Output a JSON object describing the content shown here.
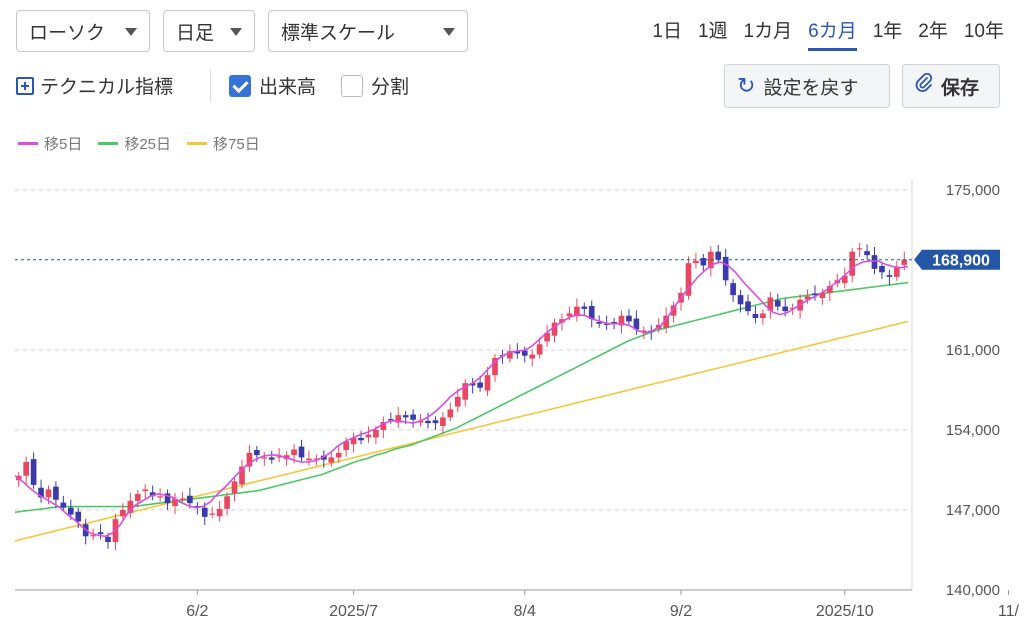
{
  "controls": {
    "chart_type": "ローソク",
    "interval": "日足",
    "scale": "標準スケール",
    "periods": [
      "1日",
      "1週",
      "1カ月",
      "6カ月",
      "1年",
      "2年",
      "10年"
    ],
    "active_period": "6カ月",
    "technical_label": "テクニカル指標",
    "volume_label": "出来高",
    "volume_checked": true,
    "split_label": "分割",
    "split_checked": false,
    "reset_label": "設定を戻す",
    "save_label": "保存"
  },
  "colors": {
    "up": "#e8475f",
    "down": "#3b3aaa",
    "ma5": "#d84fe0",
    "ma25": "#4cc766",
    "ma75": "#f5c63a",
    "accent": "#2a57b5",
    "price_tag": "#2456a8"
  },
  "chart_data": {
    "type": "candlestick",
    "title": "",
    "xlabel": "",
    "ylabel": "",
    "ylim": [
      140000,
      175000
    ],
    "yticks": [
      "175,000",
      "161,000",
      "154,000",
      "147,000",
      "140,000"
    ],
    "ytick_values": [
      175000,
      161000,
      154000,
      147000,
      140000
    ],
    "xticks": [
      {
        "label": "6/2",
        "index": 24
      },
      {
        "label": "2025/7",
        "index": 45
      },
      {
        "label": "8/4",
        "index": 68
      },
      {
        "label": "9/2",
        "index": 89
      },
      {
        "label": "2025/10",
        "index": 111
      },
      {
        "label": "11/",
        "index": 133
      }
    ],
    "last_price": 168900,
    "last_price_label": "168,900",
    "legend": [
      {
        "name": "移5日",
        "color": "#d84fe0"
      },
      {
        "name": "移25日",
        "color": "#4cc766"
      },
      {
        "name": "移75日",
        "color": "#f5c63a"
      }
    ],
    "series": [
      {
        "name": "移5日",
        "values": [
          150000,
          149500,
          148900,
          148400,
          148000,
          147600,
          147200,
          146600,
          146100,
          145500,
          145000,
          144800,
          144700,
          145000,
          145700,
          146700,
          147400,
          147800,
          148200,
          148400,
          148300,
          148100,
          147700,
          147400,
          147200,
          147300,
          147700,
          148400,
          149000,
          149700,
          150400,
          151000,
          151400,
          151700,
          151800,
          151800,
          151600,
          151400,
          151200,
          151200,
          151300,
          151600,
          152000,
          152600,
          153000,
          153300,
          153600,
          153800,
          154100,
          154500,
          154800,
          154800,
          154700,
          154600,
          154800,
          155100,
          155600,
          156200,
          156900,
          157400,
          157800,
          158100,
          158600,
          159300,
          160000,
          160500,
          160800,
          160900,
          161000,
          161400,
          162000,
          162600,
          163100,
          163500,
          163900,
          164100,
          164000,
          163700,
          163500,
          163300,
          163300,
          163300,
          163100,
          162700,
          162500,
          162700,
          163100,
          163900,
          164900,
          165800,
          166600,
          167400,
          168000,
          168500,
          168700,
          168400,
          167800,
          167000,
          166300,
          165600,
          164900,
          164300,
          164100,
          164300,
          164700,
          165100,
          165500,
          165800,
          166200,
          166700,
          167200,
          167800,
          168400,
          168700,
          168800,
          168800,
          168500,
          168300,
          168200,
          168300
        ]
      },
      {
        "name": "移25日",
        "values": [
          146800,
          146900,
          147000,
          147100,
          147200,
          147300,
          147300,
          147300,
          147300,
          147300,
          147300,
          147300,
          147300,
          147300,
          147400,
          147500,
          147600,
          147700,
          147800,
          147900,
          148000,
          148100,
          148200,
          148300,
          148400,
          148500,
          148600,
          148700,
          148900,
          149100,
          149300,
          149500,
          149700,
          149900,
          150100,
          150400,
          150700,
          151000,
          151300,
          151500,
          151800,
          152000,
          152300,
          152500,
          152700,
          153000,
          153300,
          153600,
          153900,
          154200,
          154600,
          155000,
          155400,
          155800,
          156200,
          156600,
          157000,
          157400,
          157800,
          158200,
          158600,
          159000,
          159400,
          159800,
          160200,
          160600,
          161000,
          161400,
          161800,
          162100,
          162400,
          162700,
          162900,
          163100,
          163300,
          163500,
          163700,
          163900,
          164100,
          164300,
          164500,
          164700,
          164900,
          165100,
          165300,
          165500,
          165600,
          165700,
          165800,
          165900,
          166000,
          166100,
          166200,
          166300,
          166400,
          166500,
          166600,
          166700,
          166800,
          166900
        ]
      },
      {
        "name": "移75日",
        "values": [
          144300,
          144500,
          144700,
          144900,
          145100,
          145300,
          145500,
          145700,
          145900,
          146100,
          146300,
          146500,
          146700,
          146900,
          147100,
          147300,
          147500,
          147700,
          147900,
          148100,
          148300,
          148500,
          148700,
          148900,
          149100,
          149300,
          149500,
          149700,
          149900,
          150100,
          150300,
          150500,
          150700,
          150900,
          151100,
          151300,
          151500,
          151700,
          151900,
          152100,
          152300,
          152500,
          152700,
          152900,
          153100,
          153300,
          153500,
          153700,
          153900,
          154100,
          154300,
          154500,
          154700,
          154900,
          155100,
          155300,
          155500,
          155700,
          155900,
          156100,
          156300,
          156500,
          156700,
          156900,
          157100,
          157300,
          157500,
          157700,
          157900,
          158100,
          158300,
          158500,
          158700,
          158900,
          159100,
          159300,
          159500,
          159700,
          159900,
          160100,
          160300,
          160500,
          160700,
          160900,
          161100,
          161300,
          161500,
          161700,
          161900,
          162100,
          162300,
          162500,
          162700,
          162900,
          163100,
          163300,
          163500
        ]
      },
      {
        "name": "candles_close_path",
        "values": [
          150000,
          151200,
          149200,
          148100,
          148800,
          147900,
          147200,
          146600,
          146000,
          144700,
          144800,
          144900,
          144200,
          146200,
          147000,
          147800,
          148400,
          148800,
          148200,
          148200,
          147600,
          148000,
          148000,
          147600,
          147200,
          146400,
          146700,
          147100,
          148200,
          149500,
          150800,
          152000,
          151800,
          151600,
          151400,
          151700,
          151800,
          152300,
          151600,
          151500,
          151500,
          151400,
          151600,
          152000,
          153000,
          153300,
          153100,
          153600,
          154000,
          154700,
          154900,
          155300,
          155100,
          154900,
          154800,
          154600,
          154600,
          155100,
          155800,
          156900,
          158100,
          157900,
          157700,
          158800,
          160300,
          160500,
          160900,
          160700,
          160500,
          160600,
          161500,
          162500,
          163400,
          163700,
          164200,
          164800,
          164600,
          163700,
          163300,
          163200,
          163400,
          164000,
          163500,
          162800,
          162700,
          162600,
          163200,
          164000,
          164900,
          166000,
          168600,
          168800,
          168400,
          169600,
          168900,
          167100,
          165800,
          165000,
          164400,
          163800,
          164200,
          165600,
          164800,
          164400,
          164700,
          165400,
          165700,
          165800,
          166000,
          166600,
          167100,
          167500,
          169600,
          169900,
          169300,
          168100,
          167800,
          167400,
          168200,
          168900
        ]
      }
    ]
  }
}
